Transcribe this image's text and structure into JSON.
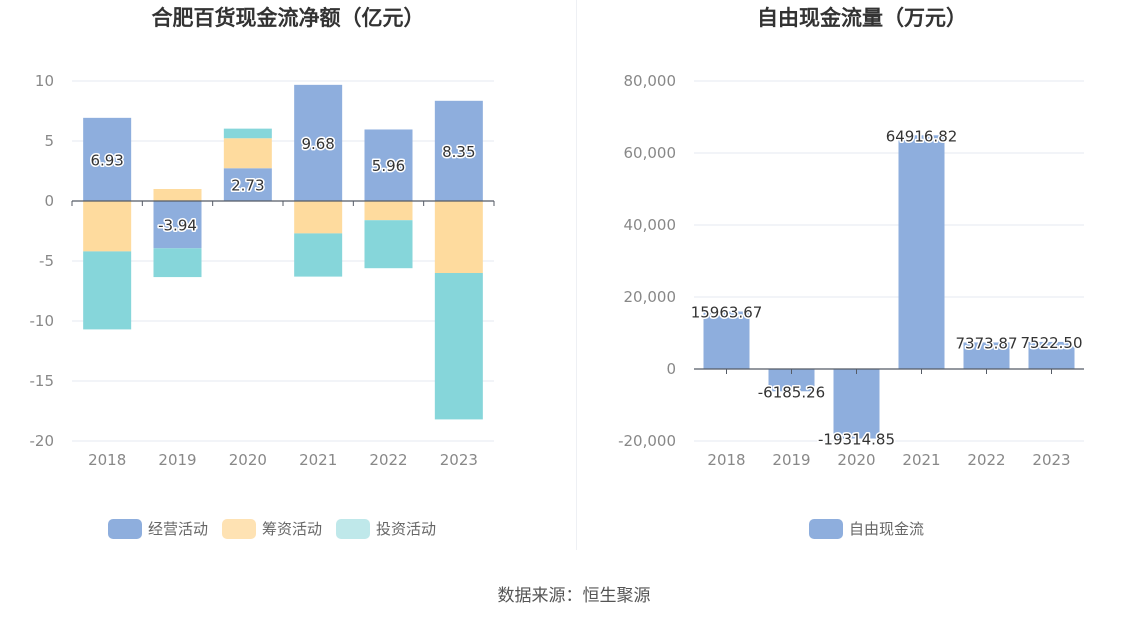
{
  "source_text": "数据来源：恒生聚源",
  "colors": {
    "operating": "#8eaedd",
    "financing": "#fedb9e",
    "investing": "#86d6da",
    "fcf": "#8eaedd",
    "axis": "#555b66",
    "grid": "#e6e8f0"
  },
  "chart_data": [
    {
      "type": "bar",
      "stacked": true,
      "title": "合肥百货现金流净额（亿元）",
      "categories": [
        "2018",
        "2019",
        "2020",
        "2021",
        "2022",
        "2023"
      ],
      "series": [
        {
          "name": "经营活动",
          "values": [
            6.93,
            -3.94,
            2.73,
            9.68,
            5.96,
            8.35
          ]
        },
        {
          "name": "筹资活动",
          "values": [
            -4.2,
            1.0,
            2.5,
            -2.7,
            -1.6,
            -6.0
          ]
        },
        {
          "name": "投资活动",
          "values": [
            -6.5,
            -2.4,
            0.8,
            -3.6,
            -4.0,
            -12.2
          ]
        }
      ],
      "data_labels": [
        "6.93",
        "-3.94",
        "2.73",
        "9.68",
        "5.96",
        "8.35"
      ],
      "ylim": [
        -20,
        10
      ],
      "yticks": [
        "10",
        "5",
        "0",
        "-5",
        "-10",
        "-15",
        "-20"
      ],
      "ytick_values": [
        10,
        5,
        0,
        -5,
        -10,
        -15,
        -20
      ],
      "grid": true,
      "legend_position": "bottom"
    },
    {
      "type": "bar",
      "title": "自由现金流量（万元）",
      "categories": [
        "2018",
        "2019",
        "2020",
        "2021",
        "2022",
        "2023"
      ],
      "series": [
        {
          "name": "自由现金流",
          "values": [
            15963.67,
            -6185.26,
            -19314.85,
            64916.82,
            7373.87,
            7522.5
          ]
        }
      ],
      "data_labels": [
        "15963.67",
        "-6185.26",
        "-19314.85",
        "64916.82",
        "7373.87",
        "7522.50"
      ],
      "ylim": [
        -20000,
        80000
      ],
      "yticks": [
        "80,000",
        "60,000",
        "40,000",
        "20,000",
        "0",
        "-20,000"
      ],
      "ytick_values": [
        80000,
        60000,
        40000,
        20000,
        0,
        -20000
      ],
      "grid": true,
      "legend_position": "bottom"
    }
  ]
}
